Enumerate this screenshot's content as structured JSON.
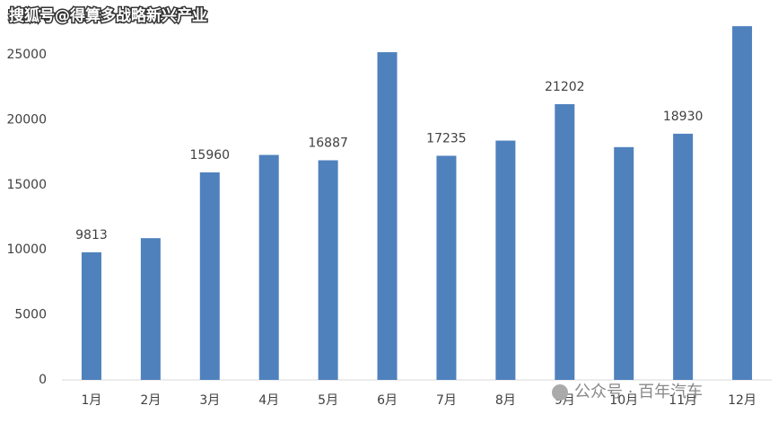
{
  "chart_data": {
    "type": "bar",
    "annotations": [
      "搜狐号@得算多战略新兴产业",
      "公众号 · 百年汽车"
    ],
    "categories": [
      "1月",
      "2月",
      "3月",
      "4月",
      "5月",
      "6月",
      "7月",
      "8月",
      "9月",
      "10月",
      "11月",
      "12月"
    ],
    "values": [
      9813,
      10900,
      15960,
      17300,
      16887,
      25200,
      17235,
      18400,
      21202,
      17900,
      18930,
      27200
    ],
    "value_labels": [
      "9813",
      null,
      "15960",
      null,
      "16887",
      null,
      "17235",
      null,
      "21202",
      null,
      "18930",
      null
    ],
    "color": "#4f81bd",
    "ylim": [
      0,
      27500
    ],
    "yticks": [
      0,
      5000,
      10000,
      15000,
      20000,
      25000
    ],
    "grid": false
  }
}
